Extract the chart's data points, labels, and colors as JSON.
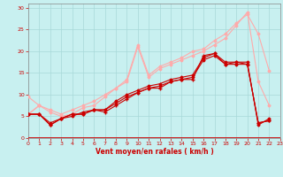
{
  "background_color": "#c8f0f0",
  "grid_color": "#a8d8d8",
  "xlabel": "Vent moyen/en rafales ( km/h )",
  "xlabel_color": "#cc0000",
  "xlabel_fontsize": 5.5,
  "tick_color": "#cc0000",
  "tick_fontsize": 4.5,
  "ylim": [
    0,
    31
  ],
  "xlim": [
    0,
    23
  ],
  "yticks": [
    0,
    5,
    10,
    15,
    20,
    25,
    30
  ],
  "xticks": [
    0,
    1,
    2,
    3,
    4,
    5,
    6,
    7,
    8,
    9,
    10,
    11,
    12,
    13,
    14,
    15,
    16,
    17,
    18,
    19,
    20,
    21,
    22,
    23
  ],
  "lines": [
    {
      "x": [
        0,
        1,
        2,
        3,
        4,
        5,
        6,
        7,
        8,
        9,
        10,
        11,
        12,
        13,
        14,
        15,
        16,
        17,
        18,
        19,
        20,
        21,
        22
      ],
      "y": [
        5.5,
        7.5,
        6.5,
        5.5,
        6.5,
        7.5,
        8.5,
        10.0,
        11.5,
        13.5,
        21.5,
        14.5,
        16.5,
        17.5,
        18.5,
        20.0,
        20.5,
        22.5,
        24.0,
        26.5,
        28.5,
        24.0,
        15.5
      ],
      "color": "#ffaaaa",
      "lw": 0.8,
      "marker": "D",
      "ms": 1.5
    },
    {
      "x": [
        0,
        1,
        2,
        3,
        4,
        5,
        6,
        7,
        8,
        9,
        10,
        11,
        12,
        13,
        14,
        15,
        16,
        17,
        18,
        19,
        20,
        21,
        22
      ],
      "y": [
        5.5,
        7.5,
        6.0,
        5.0,
        5.5,
        7.0,
        7.5,
        9.5,
        11.5,
        13.0,
        21.0,
        14.0,
        16.0,
        17.0,
        18.0,
        19.0,
        20.0,
        21.5,
        23.0,
        26.0,
        29.0,
        13.0,
        7.5
      ],
      "color": "#ffaaaa",
      "lw": 0.8,
      "marker": "D",
      "ms": 1.5
    },
    {
      "x": [
        0,
        1
      ],
      "y": [
        9.5,
        7.5
      ],
      "color": "#ffaaaa",
      "lw": 0.8,
      "marker": "D",
      "ms": 1.5
    },
    {
      "x": [
        0,
        1,
        2,
        3,
        4,
        5,
        6,
        7,
        8,
        9,
        10,
        11,
        12,
        13,
        14,
        15,
        16,
        17,
        18,
        19,
        20,
        21,
        22
      ],
      "y": [
        5.5,
        5.5,
        3.5,
        4.5,
        5.0,
        6.0,
        6.5,
        6.5,
        8.5,
        10.0,
        11.0,
        12.0,
        12.5,
        13.5,
        14.0,
        14.5,
        18.5,
        19.5,
        17.5,
        17.5,
        17.5,
        3.0,
        4.5
      ],
      "color": "#cc0000",
      "lw": 0.8,
      "marker": "D",
      "ms": 1.5
    },
    {
      "x": [
        0,
        1,
        2,
        3,
        4,
        5,
        6,
        7,
        8,
        9,
        10,
        11,
        12,
        13,
        14,
        15,
        16,
        17,
        18,
        19,
        20,
        21,
        22
      ],
      "y": [
        5.5,
        5.5,
        3.0,
        4.5,
        5.5,
        5.5,
        6.5,
        6.5,
        8.0,
        9.5,
        10.5,
        11.5,
        12.0,
        13.0,
        13.5,
        14.0,
        18.0,
        19.0,
        17.0,
        17.0,
        17.0,
        3.5,
        4.0
      ],
      "color": "#cc0000",
      "lw": 0.8,
      "marker": "D",
      "ms": 1.5
    },
    {
      "x": [
        0,
        1,
        2,
        3,
        4,
        5,
        6,
        7,
        8,
        9,
        10,
        11,
        12,
        13,
        14,
        15,
        16,
        17,
        18,
        19,
        20,
        21,
        22
      ],
      "y": [
        5.5,
        5.5,
        3.0,
        4.5,
        5.5,
        5.5,
        6.5,
        6.0,
        7.5,
        9.0,
        10.5,
        11.5,
        11.5,
        13.0,
        13.5,
        13.5,
        19.0,
        19.5,
        17.0,
        17.5,
        17.0,
        3.5,
        4.0
      ],
      "color": "#cc0000",
      "lw": 0.8,
      "marker": "+",
      "ms": 3.0
    }
  ],
  "spine_color": "#888888",
  "axhline_color": "#cc0000",
  "axhline_lw": 1.2
}
